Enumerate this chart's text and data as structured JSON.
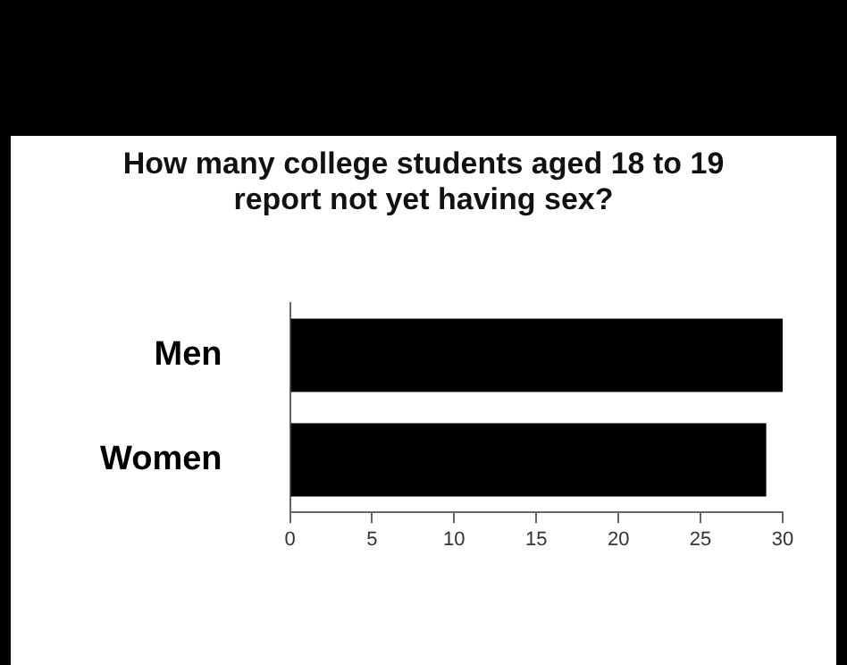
{
  "chart_data": {
    "type": "bar",
    "orientation": "horizontal",
    "title": "How many college students aged 18 to 19 report not yet having sex?",
    "categories": [
      "Men",
      "Women"
    ],
    "values": [
      30,
      29
    ],
    "color": "#000000",
    "xlim": [
      0,
      30
    ],
    "xticks": [
      0,
      5,
      10,
      15,
      20,
      25,
      30
    ],
    "grid": false,
    "legend": false
  }
}
